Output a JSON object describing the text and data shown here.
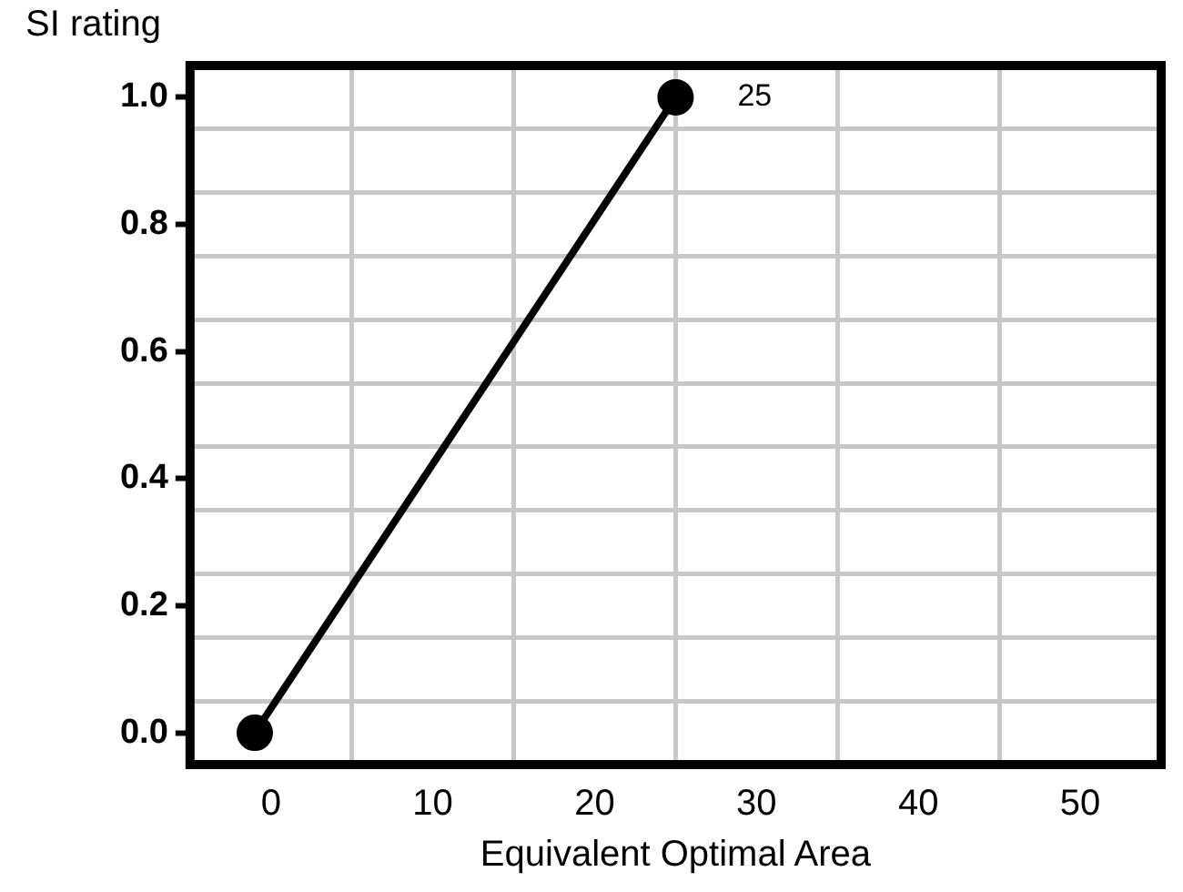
{
  "chart_data": {
    "type": "line",
    "xlabel": "Equivalent Optimal Area",
    "ylabel": "SI rating",
    "x": [
      -1,
      25
    ],
    "series": [
      {
        "color": "#000000",
        "values": [
          0,
          1.0
        ]
      }
    ],
    "annotations": [
      {
        "text": "25",
        "x": 25,
        "y": 1.0
      }
    ],
    "xlim": [
      -5,
      55
    ],
    "xticks": [
      0,
      {
        "value": 5,
        "label": null
      },
      10,
      {
        "value": 15,
        "label": null
      },
      20,
      {
        "value": 25,
        "label": null
      },
      30,
      {
        "value": 35,
        "label": null
      },
      40,
      {
        "value": 45,
        "label": null
      },
      50
    ],
    "ylim": [
      -0.05,
      1.05
    ],
    "yticks": [
      {
        "value": 0,
        "label": "0.0"
      },
      {
        "value": 0.05,
        "label": null
      },
      {
        "value": 0.15,
        "label": null
      },
      {
        "value": 0.2,
        "label": "0.2"
      },
      {
        "value": 0.25,
        "label": null
      },
      {
        "value": 0.35,
        "label": null
      },
      {
        "value": 0.4,
        "label": "0.4"
      },
      {
        "value": 0.45,
        "label": null
      },
      {
        "value": 0.55,
        "label": null
      },
      {
        "value": 0.6,
        "label": "0.6"
      },
      {
        "value": 0.65,
        "label": null
      },
      {
        "value": 0.75,
        "label": null
      },
      {
        "value": 0.8,
        "label": "0.8"
      },
      {
        "value": 0.85,
        "label": null
      },
      {
        "value": 0.95,
        "label": null
      },
      {
        "value": 1.0,
        "label": "1.0"
      }
    ],
    "grid": true,
    "marker": "circle",
    "line_style": "solid"
  }
}
